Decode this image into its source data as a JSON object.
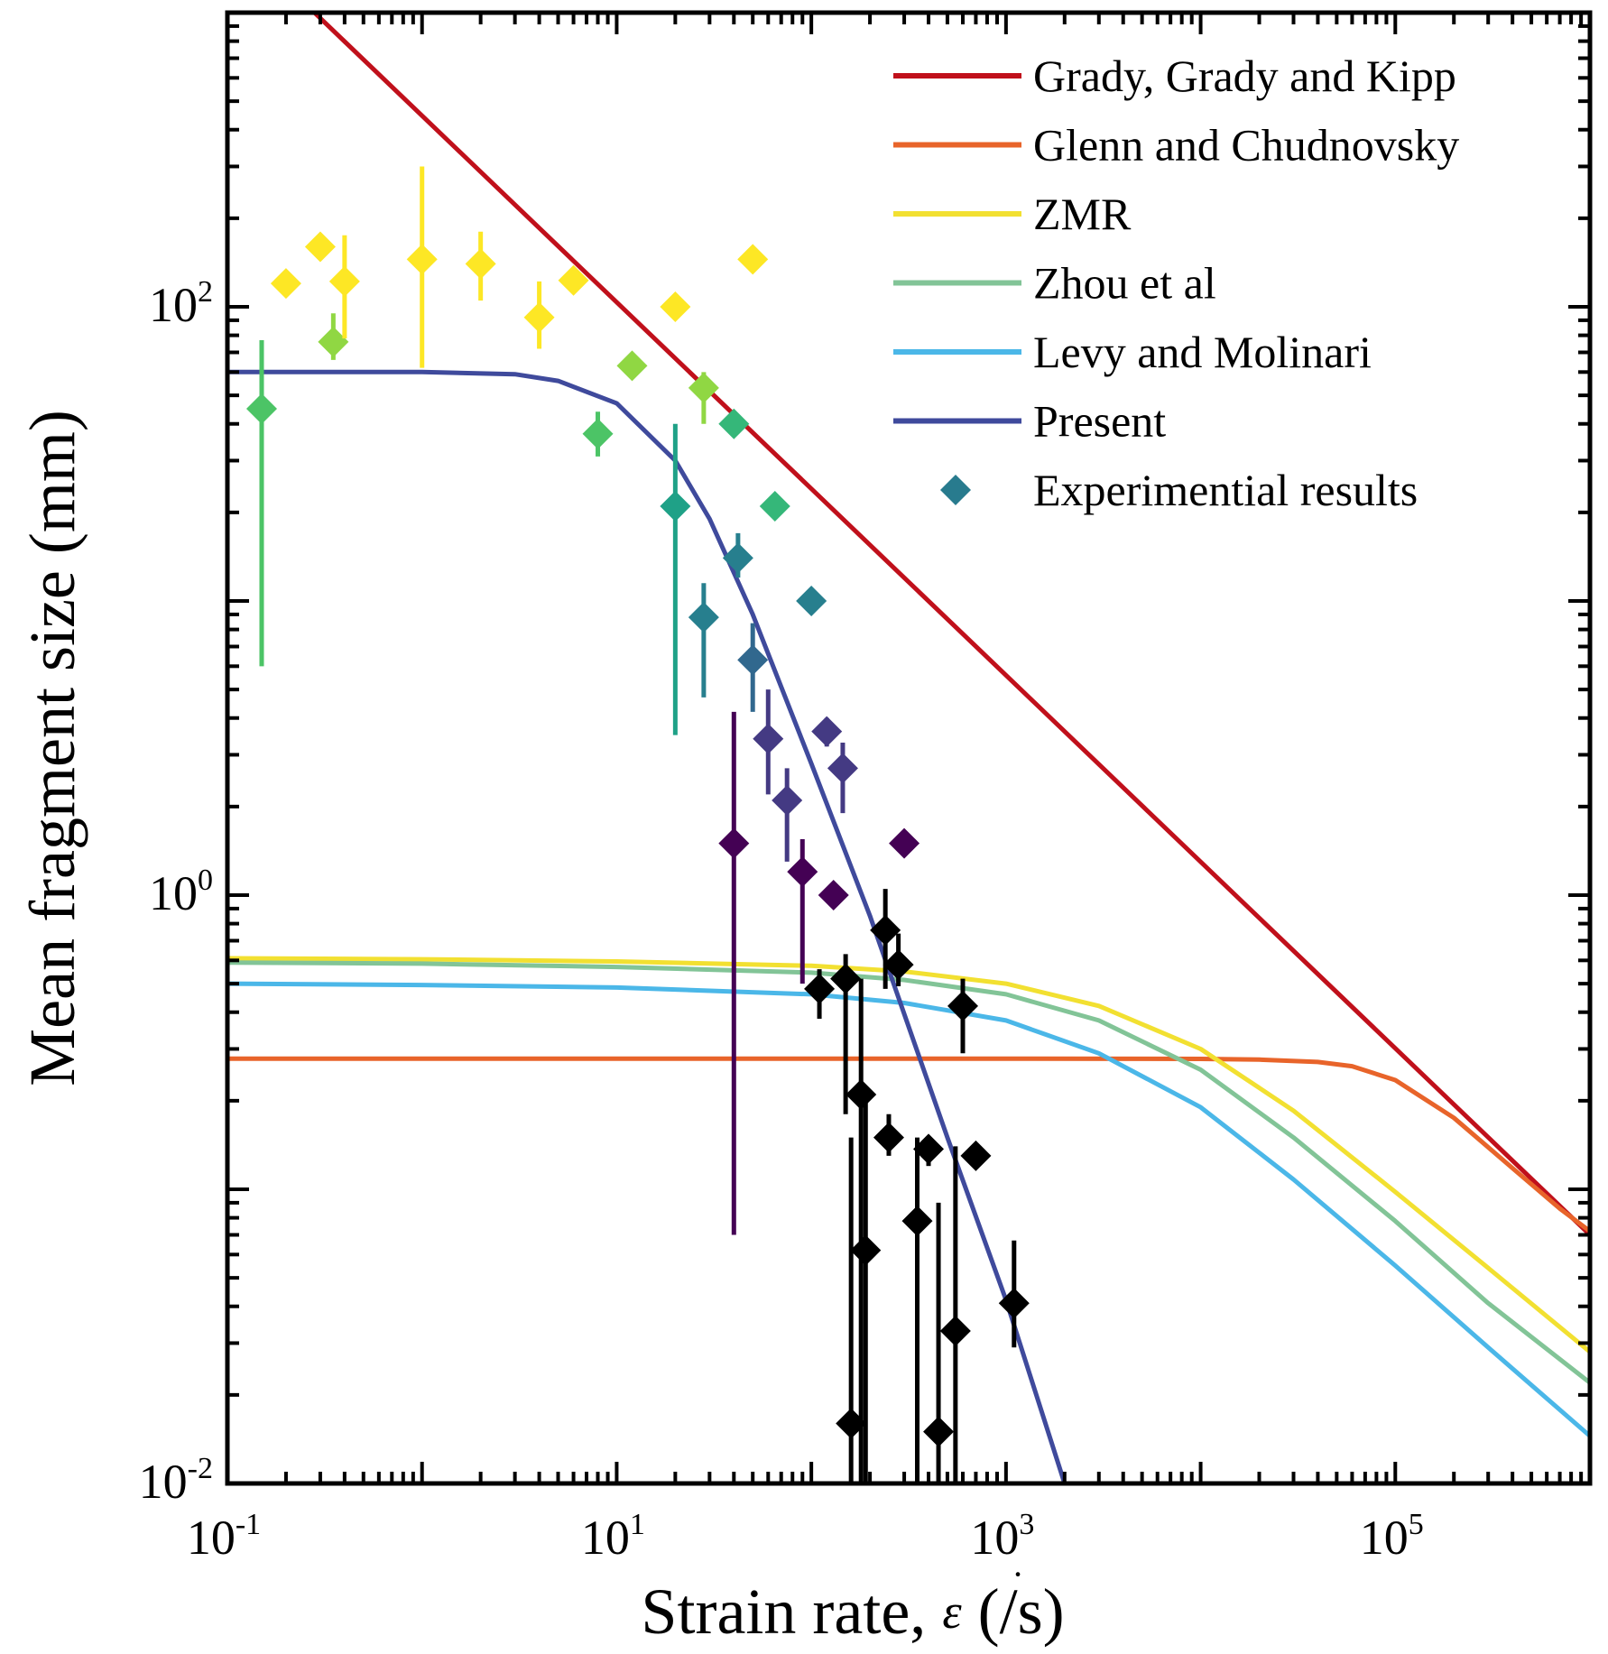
{
  "chart_data": {
    "type": "line",
    "title": "",
    "xlabel": "Strain rate, ε̇ (/s)",
    "xlabel_parts": {
      "prefix": "Strain rate, ",
      "symbol": "ε",
      "suffix": " (/s)"
    },
    "ylabel": "Mean fragment size (mm)",
    "xscale": "log",
    "yscale": "log",
    "xlim": [
      0.1,
      1000000
    ],
    "ylim": [
      0.01,
      1000
    ],
    "xticks": [
      {
        "value": 0.1,
        "base": "10",
        "exp": "-1"
      },
      {
        "value": 10,
        "base": "10",
        "exp": "1"
      },
      {
        "value": 1000,
        "base": "10",
        "exp": "3"
      },
      {
        "value": 100000,
        "base": "10",
        "exp": "5"
      }
    ],
    "yticks": [
      {
        "value": 0.01,
        "base": "10",
        "exp": "-2"
      },
      {
        "value": 1,
        "base": "10",
        "exp": "0"
      },
      {
        "value": 100,
        "base": "10",
        "exp": "2"
      }
    ],
    "grid": false,
    "legend_position": "top-right",
    "series": [
      {
        "name": "Grady, Grady and Kipp",
        "kind": "line",
        "color": "#c0101b",
        "points": [
          [
            0.28,
            1000
          ],
          [
            1000000,
            0.07
          ]
        ]
      },
      {
        "name": "Glenn and Chudnovsky",
        "kind": "line",
        "color": "#e8642a",
        "points": [
          [
            0.1,
            0.278
          ],
          [
            1000,
            0.278
          ],
          [
            10000,
            0.2775
          ],
          [
            20000,
            0.276
          ],
          [
            40000,
            0.271
          ],
          [
            60000,
            0.262
          ],
          [
            100000,
            0.235
          ],
          [
            200000,
            0.175
          ],
          [
            400000,
            0.118
          ],
          [
            700000,
            0.086
          ],
          [
            1000000,
            0.072
          ]
        ]
      },
      {
        "name": "ZMR",
        "kind": "line",
        "color": "#f2e031",
        "points": [
          [
            0.1,
            0.61
          ],
          [
            1,
            0.605
          ],
          [
            10,
            0.595
          ],
          [
            100,
            0.575
          ],
          [
            300,
            0.55
          ],
          [
            1000,
            0.5
          ],
          [
            3000,
            0.42
          ],
          [
            10000,
            0.3
          ],
          [
            30000,
            0.185
          ],
          [
            100000,
            0.098
          ],
          [
            300000,
            0.054
          ],
          [
            1000000,
            0.028
          ]
        ]
      },
      {
        "name": "Zhou et al",
        "kind": "line",
        "color": "#82c497",
        "points": [
          [
            0.1,
            0.59
          ],
          [
            1,
            0.585
          ],
          [
            10,
            0.57
          ],
          [
            100,
            0.545
          ],
          [
            300,
            0.515
          ],
          [
            1000,
            0.46
          ],
          [
            3000,
            0.375
          ],
          [
            10000,
            0.255
          ],
          [
            30000,
            0.15
          ],
          [
            100000,
            0.078
          ],
          [
            300000,
            0.041
          ],
          [
            1000000,
            0.022
          ]
        ]
      },
      {
        "name": "Levy and Molinari",
        "kind": "line",
        "color": "#4bb7e8",
        "points": [
          [
            0.1,
            0.5
          ],
          [
            1,
            0.495
          ],
          [
            10,
            0.485
          ],
          [
            100,
            0.46
          ],
          [
            300,
            0.43
          ],
          [
            1000,
            0.375
          ],
          [
            3000,
            0.29
          ],
          [
            10000,
            0.19
          ],
          [
            30000,
            0.108
          ],
          [
            100000,
            0.055
          ],
          [
            300000,
            0.029
          ],
          [
            1000000,
            0.0145
          ]
        ]
      },
      {
        "name": "Present",
        "kind": "line",
        "color": "#3f4a9c",
        "points": [
          [
            0.1,
            60
          ],
          [
            1,
            60
          ],
          [
            3,
            59
          ],
          [
            5,
            56
          ],
          [
            10,
            47
          ],
          [
            20,
            30
          ],
          [
            30,
            19
          ],
          [
            50,
            9
          ],
          [
            100,
            2.8
          ],
          [
            200,
            0.85
          ],
          [
            500,
            0.15
          ],
          [
            1000,
            0.042
          ],
          [
            2000,
            0.01
          ]
        ]
      },
      {
        "name": "Experimential results",
        "kind": "scatter",
        "color": "#287b8e",
        "points": [
          {
            "x": 0.15,
            "y": 45,
            "lo": 6,
            "hi": 77,
            "color": "#4cc466"
          },
          {
            "x": 0.2,
            "y": 120,
            "color": "#fde725"
          },
          {
            "x": 0.3,
            "y": 160,
            "color": "#fde725"
          },
          {
            "x": 0.35,
            "y": 76,
            "lo": 66,
            "hi": 95,
            "color": "#90d743"
          },
          {
            "x": 0.4,
            "y": 122,
            "lo": 78,
            "hi": 175,
            "color": "#fde725"
          },
          {
            "x": 1,
            "y": 145,
            "lo": 62,
            "hi": 300,
            "color": "#fde725"
          },
          {
            "x": 2,
            "y": 140,
            "lo": 105,
            "hi": 180,
            "color": "#fde725"
          },
          {
            "x": 4,
            "y": 92,
            "lo": 72,
            "hi": 122,
            "color": "#fde725"
          },
          {
            "x": 6,
            "y": 123,
            "color": "#fde725"
          },
          {
            "x": 8,
            "y": 37,
            "lo": 31,
            "hi": 44,
            "color": "#4cc466"
          },
          {
            "x": 12,
            "y": 63,
            "color": "#90d743"
          },
          {
            "x": 20,
            "y": 100,
            "color": "#fde725"
          },
          {
            "x": 20,
            "y": 21,
            "lo": 3.5,
            "hi": 40,
            "color": "#1fa187"
          },
          {
            "x": 28,
            "y": 53,
            "lo": 40,
            "hi": 60,
            "color": "#90d743"
          },
          {
            "x": 28,
            "y": 8.8,
            "lo": 4.7,
            "hi": 11.5,
            "color": "#277f8e"
          },
          {
            "x": 40,
            "y": 40,
            "color": "#35b779"
          },
          {
            "x": 40,
            "y": 1.5,
            "lo": 0.07,
            "hi": 4.2,
            "color": "#440154"
          },
          {
            "x": 42,
            "y": 14,
            "lo": 12,
            "hi": 17,
            "color": "#277f8e"
          },
          {
            "x": 50,
            "y": 6.3,
            "lo": 4.2,
            "hi": 8.4,
            "color": "#31688e"
          },
          {
            "x": 50,
            "y": 145,
            "color": "#fde725"
          },
          {
            "x": 60,
            "y": 3.4,
            "lo": 2.2,
            "hi": 5,
            "color": "#443a83"
          },
          {
            "x": 65,
            "y": 21,
            "color": "#35b779"
          },
          {
            "x": 75,
            "y": 2.1,
            "lo": 1.3,
            "hi": 2.7,
            "color": "#443a83"
          },
          {
            "x": 90,
            "y": 1.2,
            "lo": 0.5,
            "hi": 1.55,
            "color": "#440154"
          },
          {
            "x": 100,
            "y": 10,
            "color": "#277f8e"
          },
          {
            "x": 110,
            "y": 0.48,
            "lo": 0.38,
            "hi": 0.56,
            "color": "#000000"
          },
          {
            "x": 120,
            "y": 3.6,
            "lo": 3.2,
            "hi": 4,
            "color": "#443a83"
          },
          {
            "x": 130,
            "y": 1.0,
            "color": "#440154"
          },
          {
            "x": 145,
            "y": 2.7,
            "lo": 1.9,
            "hi": 3.3,
            "color": "#443a83"
          },
          {
            "x": 150,
            "y": 0.52,
            "lo": 0.18,
            "hi": 0.63,
            "color": "#000000"
          },
          {
            "x": 160,
            "y": 0.016,
            "lo": 0.005,
            "hi": 0.15,
            "color": "#000000"
          },
          {
            "x": 180,
            "y": 0.21,
            "lo": 0.005,
            "hi": 0.52,
            "color": "#000000"
          },
          {
            "x": 190,
            "y": 0.062,
            "lo": 0.005,
            "hi": 0.22,
            "color": "#000000"
          },
          {
            "x": 240,
            "y": 0.76,
            "lo": 0.48,
            "hi": 1.05,
            "color": "#000000"
          },
          {
            "x": 250,
            "y": 0.15,
            "lo": 0.13,
            "hi": 0.18,
            "color": "#000000"
          },
          {
            "x": 280,
            "y": 0.58,
            "lo": 0.49,
            "hi": 0.74,
            "color": "#000000"
          },
          {
            "x": 300,
            "y": 1.5,
            "color": "#440154"
          },
          {
            "x": 350,
            "y": 0.078,
            "lo": 0.005,
            "hi": 0.15,
            "color": "#000000"
          },
          {
            "x": 400,
            "y": 0.137,
            "lo": 0.12,
            "hi": 0.14,
            "color": "#000000"
          },
          {
            "x": 450,
            "y": 0.015,
            "lo": 0.005,
            "hi": 0.09,
            "color": "#000000"
          },
          {
            "x": 550,
            "y": 0.033,
            "lo": 0.005,
            "hi": 0.14,
            "color": "#000000"
          },
          {
            "x": 600,
            "y": 0.42,
            "lo": 0.29,
            "hi": 0.52,
            "color": "#000000"
          },
          {
            "x": 700,
            "y": 0.13,
            "color": "#000000"
          },
          {
            "x": 1100,
            "y": 0.041,
            "lo": 0.029,
            "hi": 0.067,
            "color": "#000000"
          }
        ]
      }
    ]
  }
}
